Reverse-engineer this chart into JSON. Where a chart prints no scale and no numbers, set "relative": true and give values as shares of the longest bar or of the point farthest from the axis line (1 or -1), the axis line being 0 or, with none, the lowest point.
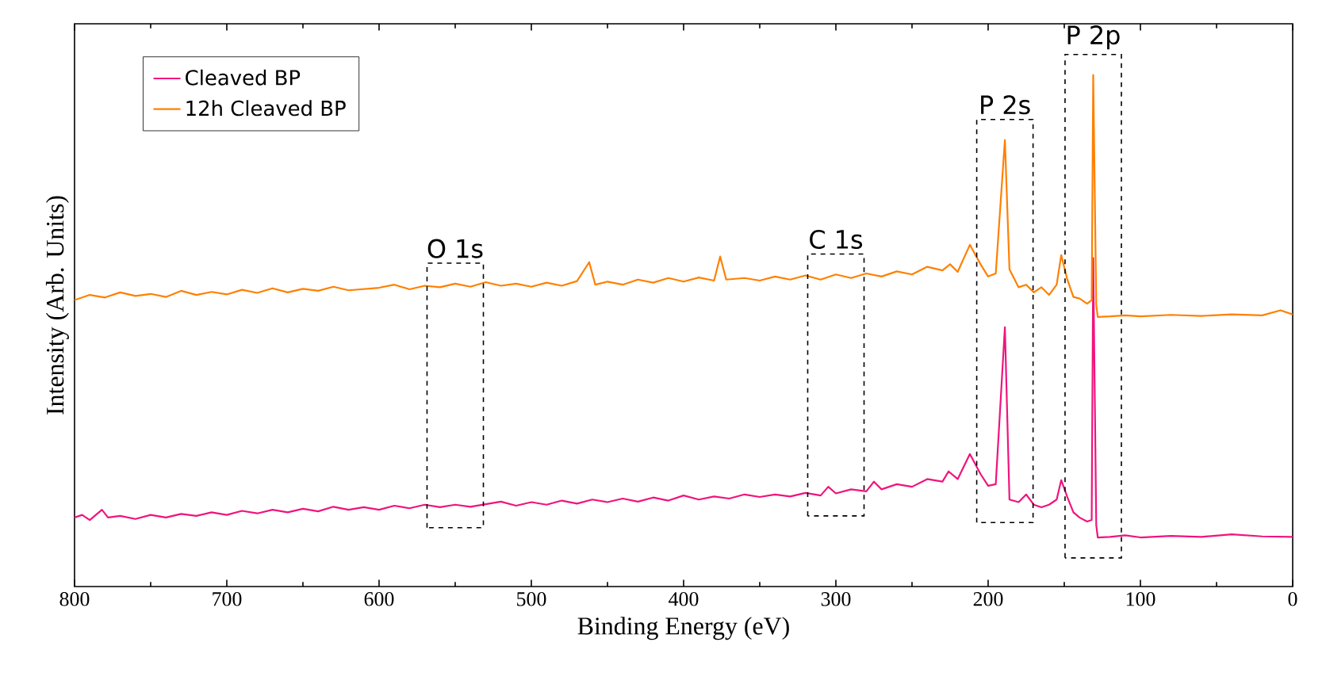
{
  "chart_data": {
    "type": "line",
    "xlabel": "Binding Energy (eV)",
    "ylabel": "Intensity (Arb. Units)",
    "relative": true,
    "xlim": [
      800,
      0
    ],
    "xticks": [
      800,
      700,
      600,
      500,
      400,
      300,
      200,
      100,
      0
    ],
    "legend": "top left",
    "grid": false,
    "series": [
      {
        "name": "Cleaved BP",
        "color": "#f0147d",
        "x": [
          800,
          795,
          790,
          782,
          778,
          770,
          760,
          750,
          740,
          730,
          720,
          710,
          700,
          690,
          680,
          670,
          660,
          650,
          640,
          630,
          620,
          610,
          600,
          590,
          580,
          570,
          560,
          550,
          540,
          520,
          510,
          500,
          490,
          480,
          470,
          460,
          450,
          440,
          430,
          420,
          410,
          400,
          390,
          380,
          370,
          360,
          350,
          340,
          330,
          320,
          310,
          305,
          300,
          290,
          280,
          275,
          270,
          260,
          250,
          240,
          230,
          226,
          220,
          212,
          205,
          200,
          195,
          189,
          186,
          180,
          175,
          170,
          165,
          160,
          155,
          152,
          148,
          144,
          140,
          135,
          132,
          131,
          129,
          128,
          120,
          110,
          100,
          80,
          60,
          40,
          20,
          0
        ],
        "values": [
          0.135,
          0.14,
          0.13,
          0.15,
          0.135,
          0.138,
          0.132,
          0.14,
          0.135,
          0.142,
          0.138,
          0.145,
          0.14,
          0.148,
          0.143,
          0.15,
          0.145,
          0.152,
          0.147,
          0.156,
          0.15,
          0.155,
          0.15,
          0.158,
          0.153,
          0.16,
          0.155,
          0.16,
          0.156,
          0.166,
          0.158,
          0.165,
          0.16,
          0.168,
          0.162,
          0.17,
          0.165,
          0.172,
          0.166,
          0.174,
          0.168,
          0.178,
          0.17,
          0.176,
          0.172,
          0.18,
          0.175,
          0.18,
          0.176,
          0.183,
          0.178,
          0.195,
          0.182,
          0.19,
          0.186,
          0.205,
          0.19,
          0.2,
          0.195,
          0.21,
          0.205,
          0.225,
          0.21,
          0.259,
          0.22,
          0.197,
          0.2,
          0.507,
          0.17,
          0.165,
          0.18,
          0.16,
          0.155,
          0.16,
          0.17,
          0.208,
          0.175,
          0.145,
          0.135,
          0.127,
          0.13,
          0.642,
          0.12,
          0.096,
          0.097,
          0.1,
          0.096,
          0.099,
          0.097,
          0.102,
          0.098,
          0.097
        ]
      },
      {
        "name": "12h Cleaved BP",
        "color": "#ff8000",
        "x": [
          800,
          790,
          780,
          770,
          760,
          750,
          740,
          730,
          720,
          710,
          700,
          690,
          680,
          670,
          660,
          650,
          640,
          630,
          620,
          600,
          590,
          580,
          570,
          560,
          550,
          540,
          530,
          520,
          510,
          500,
          490,
          480,
          470,
          462,
          458,
          450,
          440,
          430,
          420,
          410,
          400,
          390,
          380,
          376,
          372,
          360,
          350,
          340,
          330,
          320,
          310,
          300,
          290,
          280,
          270,
          260,
          250,
          240,
          230,
          225,
          220,
          212,
          205,
          200,
          195,
          189,
          186,
          180,
          175,
          170,
          165,
          160,
          155,
          152,
          148,
          144,
          140,
          135,
          132,
          131,
          129,
          128,
          120,
          110,
          100,
          80,
          60,
          40,
          20,
          8,
          0
        ],
        "values": [
          0.56,
          0.57,
          0.565,
          0.575,
          0.568,
          0.572,
          0.566,
          0.578,
          0.57,
          0.576,
          0.571,
          0.58,
          0.574,
          0.583,
          0.575,
          0.582,
          0.578,
          0.586,
          0.579,
          0.584,
          0.59,
          0.581,
          0.588,
          0.585,
          0.592,
          0.586,
          0.595,
          0.588,
          0.592,
          0.586,
          0.594,
          0.588,
          0.597,
          0.634,
          0.59,
          0.596,
          0.59,
          0.6,
          0.594,
          0.603,
          0.596,
          0.604,
          0.598,
          0.645,
          0.6,
          0.603,
          0.598,
          0.606,
          0.6,
          0.608,
          0.6,
          0.61,
          0.603,
          0.612,
          0.606,
          0.616,
          0.61,
          0.625,
          0.618,
          0.63,
          0.615,
          0.668,
          0.63,
          0.606,
          0.612,
          0.873,
          0.62,
          0.585,
          0.59,
          0.575,
          0.585,
          0.57,
          0.59,
          0.648,
          0.6,
          0.566,
          0.563,
          0.553,
          0.56,
          1.0,
          0.55,
          0.527,
          0.528,
          0.53,
          0.528,
          0.531,
          0.529,
          0.532,
          0.53,
          0.54,
          0.532
        ]
      }
    ],
    "annotations": [
      {
        "text": "O 1s",
        "x": 550,
        "y": 0.592
      },
      {
        "text": "C 1s",
        "x": 300,
        "y": 0.61
      },
      {
        "text": "P 2s",
        "x": 189,
        "y": 0.873
      },
      {
        "text": "P 2p",
        "x": 131,
        "y": 1.0
      }
    ]
  }
}
